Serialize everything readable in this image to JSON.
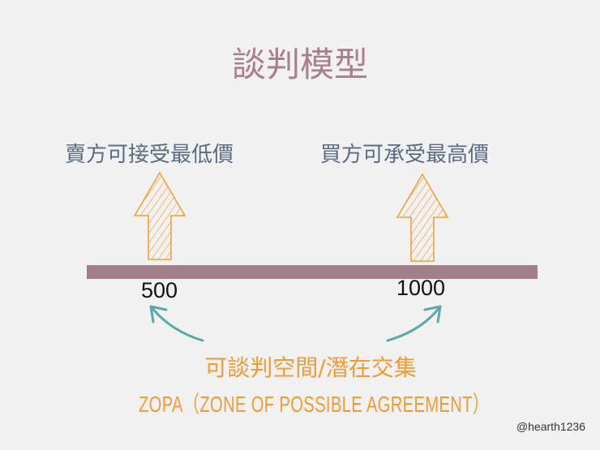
{
  "title": "談判模型",
  "seller_label": "賣方可接受最低價",
  "buyer_label": "買方可承受最高價",
  "seller_value": "500",
  "buyer_value": "1000",
  "zone_label_cn": "可談判空間/潛在交集",
  "zone_label_en": "ZOPA（ZONE OF POSSIBLE AGREEMENT）",
  "credit": "@hearth1236",
  "colors": {
    "background": "#f1f1f1",
    "title": "#a97f8c",
    "labels": "#5b6b82",
    "bar": "#a27f8a",
    "arrows": "#f5a03a",
    "curved_arrows": "#5aa9a9",
    "zone_text": "#f29a33"
  }
}
